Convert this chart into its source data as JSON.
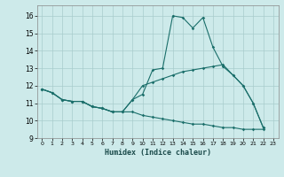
{
  "xlabel": "Humidex (Indice chaleur)",
  "ylabel": "",
  "background_color": "#cdeaea",
  "grid_color": "#a8cccc",
  "line_color": "#1a6e6a",
  "xlim": [
    -0.5,
    23.5
  ],
  "ylim": [
    9,
    16.6
  ],
  "xticks": [
    0,
    1,
    2,
    3,
    4,
    5,
    6,
    7,
    8,
    9,
    10,
    11,
    12,
    13,
    14,
    15,
    16,
    17,
    18,
    19,
    20,
    21,
    22,
    23
  ],
  "yticks": [
    9,
    10,
    11,
    12,
    13,
    14,
    15,
    16
  ],
  "line1_y": [
    11.8,
    11.6,
    11.2,
    11.1,
    11.1,
    10.8,
    10.7,
    10.5,
    10.5,
    11.2,
    11.5,
    12.9,
    13.0,
    16.0,
    15.9,
    15.3,
    15.9,
    14.2,
    13.1,
    12.6,
    12.0,
    11.0,
    9.6,
    null
  ],
  "line2_y": [
    11.8,
    11.6,
    11.2,
    11.1,
    11.1,
    10.8,
    10.7,
    10.5,
    10.5,
    11.2,
    12.0,
    12.2,
    12.4,
    12.6,
    12.8,
    12.9,
    13.0,
    13.1,
    13.2,
    12.6,
    12.0,
    11.0,
    9.6,
    null
  ],
  "line3_y": [
    11.8,
    11.6,
    11.2,
    11.1,
    11.1,
    10.8,
    10.7,
    10.5,
    10.5,
    10.5,
    10.3,
    10.2,
    10.1,
    10.0,
    9.9,
    9.8,
    9.8,
    9.7,
    9.6,
    9.6,
    9.5,
    9.5,
    9.5,
    null
  ]
}
